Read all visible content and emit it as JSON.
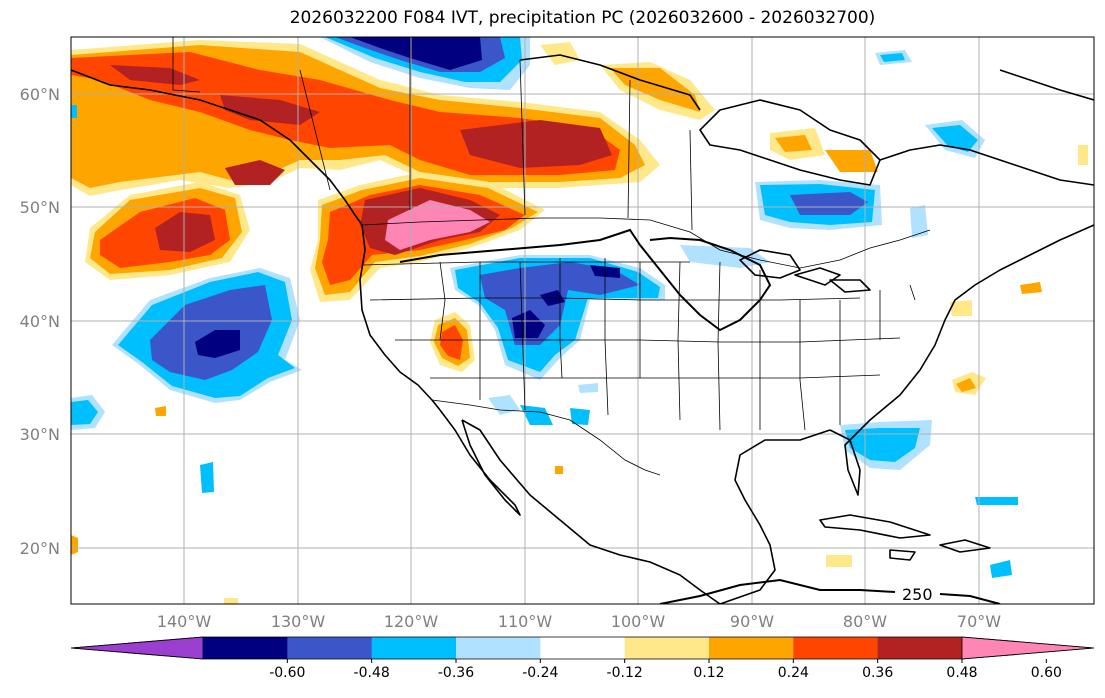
{
  "title": "2026032200 F084 IVT, precipitation PC (2026032600 - 2026032700)",
  "lat_ticks": [
    "60°N",
    "50°N",
    "40°N",
    "30°N",
    "20°N"
  ],
  "lon_ticks": [
    "140°W",
    "130°W",
    "120°W",
    "110°W",
    "100°W",
    "90°W",
    "80°W",
    "70°W"
  ],
  "ivt_contour_label": "250",
  "colorbar": {
    "tick_labels": [
      "-0.60",
      "-0.48",
      "-0.36",
      "-0.24",
      "-0.12",
      "0.12",
      "0.24",
      "0.36",
      "0.48",
      "0.60"
    ],
    "colors": [
      "#9b3fd1",
      "#000080",
      "#3a56c8",
      "#00bfff",
      "#b0e2ff",
      "#ffffff",
      "#ffe88a",
      "#ffa500",
      "#ff4500",
      "#b22222",
      "#ff85b4"
    ]
  },
  "palette": {
    "pink": "#ff85b4",
    "darkred": "#b22222",
    "redorange": "#ff4500",
    "orange": "#ffa500",
    "yellow": "#ffe88a",
    "lightblue": "#b0e2ff",
    "skyblue": "#00bfff",
    "medblue": "#3a56c8",
    "navy": "#000080"
  }
}
